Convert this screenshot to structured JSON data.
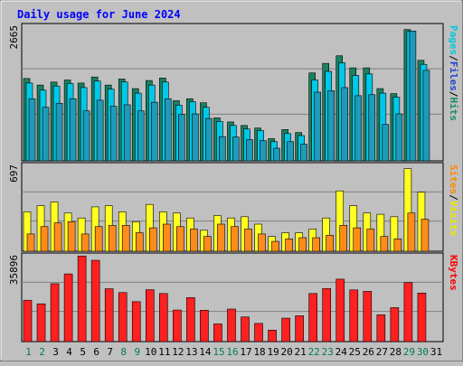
{
  "chart_data": {
    "type": "bar",
    "title": "Daily usage for June 2024",
    "categories": [
      "1",
      "2",
      "3",
      "4",
      "5",
      "6",
      "7",
      "8",
      "9",
      "10",
      "11",
      "12",
      "13",
      "14",
      "15",
      "16",
      "17",
      "18",
      "19",
      "20",
      "21",
      "22",
      "23",
      "24",
      "25",
      "26",
      "27",
      "28",
      "29",
      "30",
      "31"
    ],
    "weekend_days": [
      "1",
      "2",
      "8",
      "9",
      "15",
      "16",
      "22",
      "23",
      "29",
      "30"
    ],
    "panels": [
      {
        "id": "pages-files-hits",
        "max_label": "2665",
        "ymax": 2665,
        "axis_label": [
          "Pages",
          "Files",
          "Hits"
        ],
        "label_colors": [
          "#00c8e0",
          "#2244cc",
          "#1a8a6a"
        ],
        "series": [
          {
            "name": "Hits",
            "color": "#1a8060",
            "values": [
              1630,
              1500,
              1560,
              1600,
              1540,
              1660,
              1500,
              1620,
              1430,
              1590,
              1640,
              1190,
              1230,
              1150,
              850,
              770,
              700,
              650,
              440,
              620,
              560,
              1740,
              1930,
              2080,
              1840,
              1840,
              1430,
              1330,
              2600,
              1990,
              0
            ]
          },
          {
            "name": "Files",
            "color": "#00c8e8",
            "values": [
              1540,
              1400,
              1480,
              1530,
              1450,
              1580,
              1420,
              1560,
              1340,
              1500,
              1560,
              1100,
              1170,
              1060,
              780,
              700,
              630,
              600,
              380,
              540,
              500,
              1600,
              1770,
              1940,
              1690,
              1720,
              1340,
              1260,
              2560,
              1910,
              0
            ]
          },
          {
            "name": "Pages",
            "color": "#1f9ab8",
            "values": [
              1230,
              1060,
              1140,
              1230,
              990,
              1200,
              1080,
              1110,
              990,
              1160,
              1230,
              920,
              930,
              840,
              480,
              470,
              420,
              400,
              250,
              380,
              330,
              1360,
              1390,
              1450,
              1290,
              1310,
              720,
              930,
              2570,
              1790,
              0
            ]
          }
        ]
      },
      {
        "id": "visits-sites",
        "max_label": "697",
        "ymax": 697,
        "axis_label": [
          "Sites",
          "Visits"
        ],
        "label_colors": [
          "#ff8800",
          "#e8e800"
        ],
        "series": [
          {
            "name": "Visits",
            "color": "#ffff22",
            "values": [
              320,
              370,
              400,
              310,
              270,
              360,
              370,
              320,
              240,
              380,
              320,
              310,
              270,
              170,
              290,
              270,
              280,
              220,
              120,
              150,
              150,
              180,
              270,
              490,
              370,
              310,
              300,
              280,
              670,
              480,
              0
            ]
          },
          {
            "name": "Sites",
            "color": "#ff8c1a",
            "values": [
              140,
              200,
              230,
              240,
              140,
              200,
              210,
              210,
              150,
              190,
              220,
              200,
              180,
              120,
              220,
              200,
              180,
              140,
              80,
              100,
              110,
              110,
              130,
              210,
              190,
              180,
              120,
              100,
              310,
              260,
              0
            ]
          }
        ]
      },
      {
        "id": "kbytes",
        "max_label": "35896",
        "ymax": 35896,
        "axis_label": [
          "KBytes"
        ],
        "label_colors": [
          "#ff0000"
        ],
        "series": [
          {
            "name": "KBytes",
            "color": "#ff2020",
            "values": [
              17300,
              15800,
              24200,
              28300,
              35800,
              34000,
              22100,
              20500,
              16700,
              21700,
              20100,
              13200,
              18400,
              13100,
              7400,
              13600,
              10300,
              7600,
              4800,
              9800,
              10800,
              20100,
              22200,
              26100,
              21600,
              21000,
              11200,
              14200,
              24700,
              20300,
              0
            ]
          }
        ]
      }
    ]
  }
}
